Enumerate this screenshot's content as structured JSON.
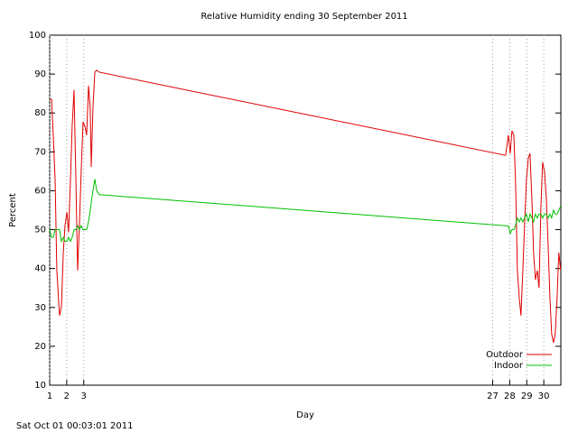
{
  "chart_data": {
    "type": "line",
    "title": "Relative Humidity ending 30 September 2011",
    "x_label": "Day",
    "y_label": "Percent",
    "footer": "Sat Oct 01 00:03:01 2011",
    "x": [
      1.0,
      1.11,
      1.21,
      1.32,
      1.42,
      1.58,
      1.69,
      1.8,
      1.9,
      2.01,
      2.11,
      2.22,
      2.32,
      2.43,
      2.54,
      2.64,
      2.75,
      2.85,
      2.96,
      3.07,
      3.17,
      3.28,
      3.38,
      3.44,
      3.54,
      3.65,
      3.76,
      3.91,
      27.76,
      27.92,
      28.03,
      28.13,
      28.24,
      28.34,
      28.45,
      28.56,
      28.66,
      28.77,
      28.87,
      28.98,
      29.09,
      29.19,
      29.3,
      29.4,
      29.51,
      29.62,
      29.72,
      29.83,
      29.93,
      30.04,
      30.15,
      30.25,
      30.36,
      30.46,
      30.57,
      30.67,
      30.78,
      30.88,
      30.99
    ],
    "series": [
      {
        "name": "Outdoor",
        "color": "#e00000",
        "values": [
          83.5,
          83.5,
          74.3,
          62.7,
          39.5,
          27.9,
          30.2,
          44.1,
          51.1,
          54.5,
          49.3,
          62.7,
          76.6,
          85.9,
          62.7,
          39.5,
          51.8,
          65.0,
          77.7,
          76.6,
          74.3,
          87.0,
          81.2,
          66.1,
          81.2,
          90.5,
          91.0,
          90.5,
          69.1,
          74.3,
          69.6,
          75.4,
          74.3,
          62.7,
          39.5,
          32.5,
          27.9,
          39.5,
          51.1,
          62.7,
          68.4,
          69.6,
          58.0,
          44.1,
          37.1,
          39.5,
          35.0,
          55.7,
          67.3,
          65.0,
          58.0,
          46.4,
          32.5,
          23.2,
          20.9,
          23.2,
          32.5,
          44.1,
          39.5
        ]
      },
      {
        "name": "Indoor",
        "color": "#00c000",
        "values": [
          50,
          48,
          48,
          50,
          50,
          50,
          47,
          48,
          47,
          47,
          48,
          47,
          48,
          50,
          50,
          51,
          50,
          51,
          50,
          50,
          50,
          52,
          55,
          57,
          60,
          63,
          60,
          59,
          51,
          51,
          49,
          50,
          50,
          51,
          53,
          52,
          53,
          52,
          53,
          54,
          52,
          54,
          53,
          52,
          54,
          53,
          54,
          54,
          53,
          54,
          54,
          53,
          54,
          53,
          55,
          54,
          54,
          55,
          56
        ]
      }
    ],
    "xlim": [
      1,
      31
    ],
    "xticks": [
      1,
      2,
      3,
      27,
      28,
      29,
      30
    ],
    "ylim": [
      10,
      100
    ],
    "yticks": [
      10,
      20,
      30,
      40,
      50,
      60,
      70,
      80,
      90,
      100
    ],
    "x_grid": true,
    "legend": "lower-right"
  }
}
